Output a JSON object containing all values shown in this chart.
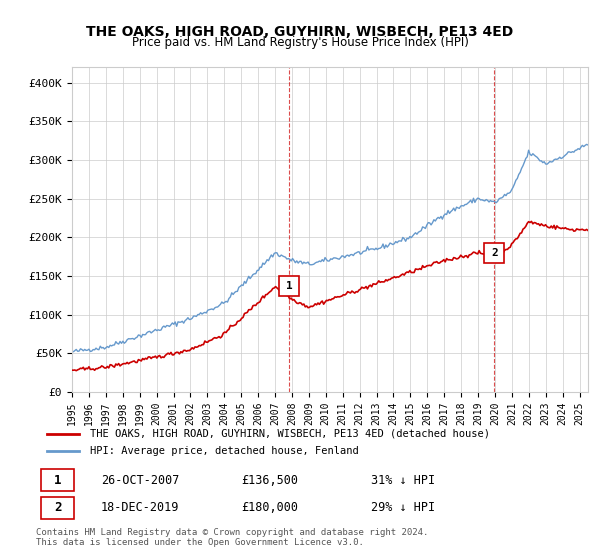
{
  "title": "THE OAKS, HIGH ROAD, GUYHIRN, WISBECH, PE13 4ED",
  "subtitle": "Price paid vs. HM Land Registry's House Price Index (HPI)",
  "ylim": [
    0,
    420000
  ],
  "yticks": [
    0,
    50000,
    100000,
    150000,
    200000,
    250000,
    300000,
    350000,
    400000
  ],
  "ytick_labels": [
    "£0",
    "£50K",
    "£100K",
    "£150K",
    "£200K",
    "£250K",
    "£300K",
    "£350K",
    "£400K"
  ],
  "xlim_start": 1995.0,
  "xlim_end": 2025.5,
  "xtick_years": [
    1995,
    1996,
    1997,
    1998,
    1999,
    2000,
    2001,
    2002,
    2003,
    2004,
    2005,
    2006,
    2007,
    2008,
    2009,
    2010,
    2011,
    2012,
    2013,
    2014,
    2015,
    2016,
    2017,
    2018,
    2019,
    2020,
    2021,
    2022,
    2023,
    2024,
    2025
  ],
  "sale1_x": 2007.82,
  "sale1_y": 136500,
  "sale1_label": "1",
  "sale2_x": 2019.96,
  "sale2_y": 180000,
  "sale2_label": "2",
  "red_line_color": "#cc0000",
  "blue_line_color": "#6699cc",
  "vline_color": "#cc0000",
  "marker_face_color": "#cc0000",
  "legend_label_red": "THE OAKS, HIGH ROAD, GUYHIRN, WISBECH, PE13 4ED (detached house)",
  "legend_label_blue": "HPI: Average price, detached house, Fenland",
  "table_row1_num": "1",
  "table_row1_date": "26-OCT-2007",
  "table_row1_price": "£136,500",
  "table_row1_hpi": "31% ↓ HPI",
  "table_row2_num": "2",
  "table_row2_date": "18-DEC-2019",
  "table_row2_price": "£180,000",
  "table_row2_hpi": "29% ↓ HPI",
  "footnote": "Contains HM Land Registry data © Crown copyright and database right 2024.\nThis data is licensed under the Open Government Licence v3.0.",
  "background_color": "#ffffff",
  "grid_color": "#cccccc"
}
